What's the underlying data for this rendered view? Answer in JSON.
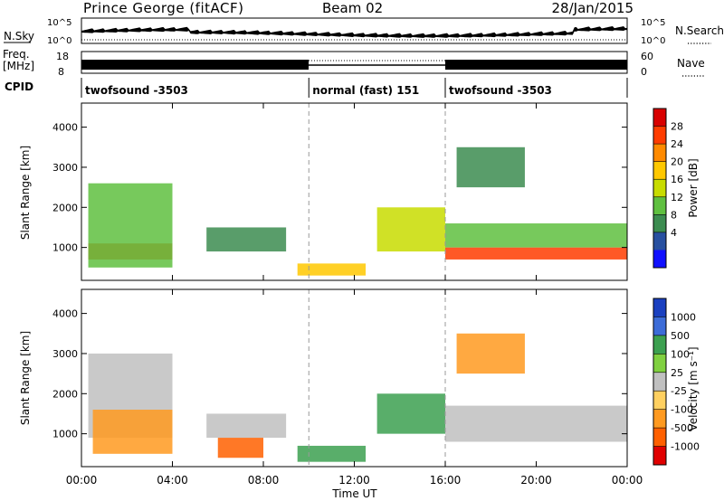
{
  "header": {
    "station": "Prince George (fitACF)",
    "beam": "Beam 02",
    "date": "28/Jan/2015"
  },
  "panels": {
    "nsky": {
      "label": "N.Sky",
      "tick_hi": "10^5",
      "tick_lo": "10^0"
    },
    "nsearch": {
      "label": "N.Search",
      "tick_hi": "10^5",
      "tick_lo": "10^0"
    },
    "freq": {
      "label_line1": "Freq.",
      "label_line2": "[MHz]",
      "tick_hi": "18",
      "tick_lo": "8"
    },
    "nave": {
      "label": "Nave",
      "tick_hi": "60",
      "tick_lo": "0"
    },
    "cpid": {
      "label": "CPID",
      "segments": [
        {
          "name": "twofsound -3503",
          "start_h": 0,
          "end_h": 10
        },
        {
          "name": "normal (fast) 151",
          "start_h": 10,
          "end_h": 16
        },
        {
          "name": "twofsound -3503",
          "start_h": 16,
          "end_h": 24
        }
      ]
    }
  },
  "power_panel": {
    "ylabel": "Slant Range [km]",
    "colorbar_label": "Power [dB]",
    "colorbar_ticks": [
      "28",
      "24",
      "20",
      "16",
      "12",
      "8",
      "4"
    ],
    "colorbar_colors": [
      "#d80000",
      "#ff3c00",
      "#ff8a00",
      "#ffc800",
      "#c8dc00",
      "#5fc040",
      "#3c8c50",
      "#2850a0",
      "#1010ff"
    ]
  },
  "velocity_panel": {
    "ylabel": "Slant Range [km]",
    "colorbar_label": "Velocity [m s⁻¹]",
    "colorbar_ticks": [
      "1000",
      "500",
      "100",
      "25",
      "-25",
      "-100",
      "-500",
      "-1000"
    ],
    "colorbar_colors": [
      "#1a40c0",
      "#3c6cd8",
      "#3ca050",
      "#80d040",
      "#c0c0c0",
      "#ffd060",
      "#ff9a20",
      "#ff6000",
      "#e00000"
    ]
  },
  "xaxis": {
    "label": "Time UT",
    "ticks": [
      "00:00",
      "04:00",
      "08:00",
      "12:00",
      "16:00",
      "20:00",
      "00:00"
    ]
  },
  "chart_data": [
    {
      "type": "heatmap",
      "title": "Power [dB]",
      "xlabel": "Time UT",
      "ylabel": "Slant Range [km]",
      "xlim": [
        0,
        24
      ],
      "ylim": [
        180,
        4600
      ],
      "yticks": [
        1000,
        2000,
        3000,
        4000
      ],
      "zlabel": "Power [dB]",
      "zlim": [
        0,
        32
      ],
      "regions": [
        {
          "t0": 0.3,
          "t1": 4.0,
          "r0": 700,
          "r1": 1100,
          "z": 28
        },
        {
          "t0": 0.3,
          "t1": 4.0,
          "r0": 500,
          "r1": 2600,
          "z": 14
        },
        {
          "t0": 5.5,
          "t1": 9.0,
          "r0": 900,
          "r1": 1500,
          "z": 8
        },
        {
          "t0": 9.5,
          "t1": 12.5,
          "r0": 300,
          "r1": 600,
          "z": 18
        },
        {
          "t0": 13.0,
          "t1": 16.0,
          "r0": 900,
          "r1": 2000,
          "z": 16
        },
        {
          "t0": 16.0,
          "t1": 24.0,
          "r0": 700,
          "r1": 1000,
          "z": 26
        },
        {
          "t0": 16.0,
          "t1": 24.0,
          "r0": 1000,
          "r1": 1600,
          "z": 12
        },
        {
          "t0": 16.5,
          "t1": 19.5,
          "r0": 2500,
          "r1": 3500,
          "z": 8
        }
      ]
    },
    {
      "type": "heatmap",
      "title": "Velocity [m s⁻¹]",
      "xlabel": "Time UT",
      "ylabel": "Slant Range [km]",
      "xlim": [
        0,
        24
      ],
      "ylim": [
        180,
        4600
      ],
      "yticks": [
        1000,
        2000,
        3000,
        4000
      ],
      "zlabel": "Velocity [m s⁻¹]",
      "zlim": [
        -1000,
        1000
      ],
      "regions": [
        {
          "t0": 0.3,
          "t1": 4.0,
          "r0": 900,
          "r1": 3000,
          "z": 0
        },
        {
          "t0": 0.5,
          "t1": 4.0,
          "r0": 500,
          "r1": 1600,
          "z": -300
        },
        {
          "t0": 5.5,
          "t1": 9.0,
          "r0": 900,
          "r1": 1500,
          "z": 0
        },
        {
          "t0": 6.0,
          "t1": 8.0,
          "r0": 400,
          "r1": 900,
          "z": -400
        },
        {
          "t0": 9.5,
          "t1": 12.5,
          "r0": 300,
          "r1": 700,
          "z": 100
        },
        {
          "t0": 13.0,
          "t1": 16.0,
          "r0": 1000,
          "r1": 2000,
          "z": 80
        },
        {
          "t0": 16.0,
          "t1": 24.0,
          "r0": 800,
          "r1": 1700,
          "z": 0
        },
        {
          "t0": 16.5,
          "t1": 19.5,
          "r0": 2500,
          "r1": 3500,
          "z": -200
        }
      ]
    }
  ]
}
